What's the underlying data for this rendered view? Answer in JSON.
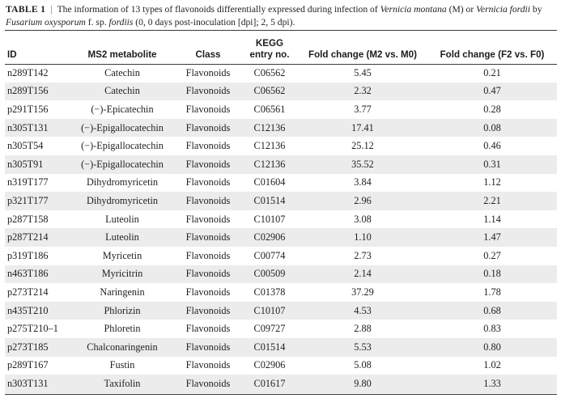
{
  "caption": {
    "label": "TABLE 1",
    "separator": "|",
    "part1": "The information of 13 types of flavonoids differentially expressed during infection of ",
    "species1": "Vernicia montana",
    "part2": " (M) or ",
    "species2": "Vernicia fordii",
    "part3": " by ",
    "pathogen": "Fusarium oxysporum",
    "part4": " f. sp. ",
    "forma": "fordiis",
    "part5": " (0, 0 days post-inoculation [dpi]; 2, 5 dpi)."
  },
  "headers": {
    "id": "ID",
    "metabolite": "MS2 metabolite",
    "class": "Class",
    "kegg_line1": "KEGG",
    "kegg_line2": "entry no.",
    "fc_m": "Fold change (M2 vs. M0)",
    "fc_f": "Fold change (F2 vs. F0)"
  },
  "rows": [
    {
      "id": "n289T142",
      "metabolite": "Catechin",
      "class": "Flavonoids",
      "kegg": "C06562",
      "fc_m": "5.45",
      "fc_f": "0.21"
    },
    {
      "id": "n289T156",
      "metabolite": "Catechin",
      "class": "Flavonoids",
      "kegg": "C06562",
      "fc_m": "2.32",
      "fc_f": "0.47"
    },
    {
      "id": "p291T156",
      "metabolite": "(−)-Epicatechin",
      "class": "Flavonoids",
      "kegg": "C06561",
      "fc_m": "3.77",
      "fc_f": "0.28"
    },
    {
      "id": "n305T131",
      "metabolite": "(−)-Epigallocatechin",
      "class": "Flavonoids",
      "kegg": "C12136",
      "fc_m": "17.41",
      "fc_f": "0.08"
    },
    {
      "id": "n305T54",
      "metabolite": "(−)-Epigallocatechin",
      "class": "Flavonoids",
      "kegg": "C12136",
      "fc_m": "25.12",
      "fc_f": "0.46"
    },
    {
      "id": "n305T91",
      "metabolite": "(−)-Epigallocatechin",
      "class": "Flavonoids",
      "kegg": "C12136",
      "fc_m": "35.52",
      "fc_f": "0.31"
    },
    {
      "id": "n319T177",
      "metabolite": "Dihydromyricetin",
      "class": "Flavonoids",
      "kegg": "C01604",
      "fc_m": "3.84",
      "fc_f": "1.12"
    },
    {
      "id": "p321T177",
      "metabolite": "Dihydromyricetin",
      "class": "Flavonoids",
      "kegg": "C01514",
      "fc_m": "2.96",
      "fc_f": "2.21"
    },
    {
      "id": "p287T158",
      "metabolite": "Luteolin",
      "class": "Flavonoids",
      "kegg": "C10107",
      "fc_m": "3.08",
      "fc_f": "1.14"
    },
    {
      "id": "p287T214",
      "metabolite": "Luteolin",
      "class": "Flavonoids",
      "kegg": "C02906",
      "fc_m": "1.10",
      "fc_f": "1.47"
    },
    {
      "id": "p319T186",
      "metabolite": "Myricetin",
      "class": "Flavonoids",
      "kegg": "C00774",
      "fc_m": "2.73",
      "fc_f": "0.27"
    },
    {
      "id": "n463T186",
      "metabolite": "Myricitrin",
      "class": "Flavonoids",
      "kegg": "C00509",
      "fc_m": "2.14",
      "fc_f": "0.18"
    },
    {
      "id": "p273T214",
      "metabolite": "Naringenin",
      "class": "Flavonoids",
      "kegg": "C01378",
      "fc_m": "37.29",
      "fc_f": "1.78"
    },
    {
      "id": "n435T210",
      "metabolite": "Phlorizin",
      "class": "Flavonoids",
      "kegg": "C10107",
      "fc_m": "4.53",
      "fc_f": "0.68"
    },
    {
      "id": "p275T210–1",
      "metabolite": "Phloretin",
      "class": "Flavonoids",
      "kegg": "C09727",
      "fc_m": "2.88",
      "fc_f": "0.83"
    },
    {
      "id": "p273T185",
      "metabolite": "Chalconaringenin",
      "class": "Flavonoids",
      "kegg": "C01514",
      "fc_m": "5.53",
      "fc_f": "0.80"
    },
    {
      "id": "p289T167",
      "metabolite": "Fustin",
      "class": "Flavonoids",
      "kegg": "C02906",
      "fc_m": "5.08",
      "fc_f": "1.02"
    },
    {
      "id": "n303T131",
      "metabolite": "Taxifolin",
      "class": "Flavonoids",
      "kegg": "C01617",
      "fc_m": "9.80",
      "fc_f": "1.33"
    }
  ]
}
